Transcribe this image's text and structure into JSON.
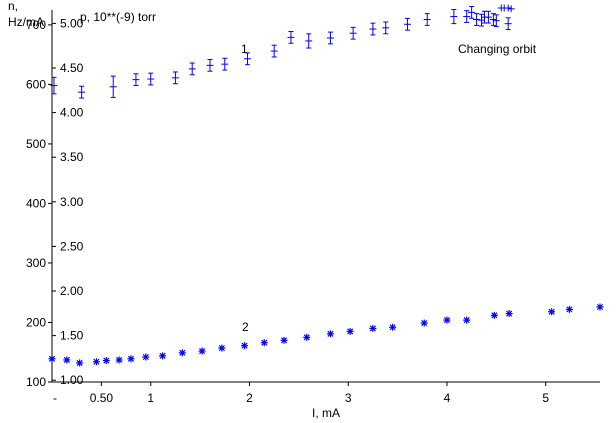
{
  "chart_data": {
    "type": "scatter",
    "left_axis": {
      "label_line1": "n,",
      "label_line2": "Hz/mA",
      "ticks": [
        "100",
        "200",
        "300",
        "400",
        "500",
        "600",
        "700"
      ],
      "ylim": [
        100,
        725
      ]
    },
    "right_axis": {
      "label": "p, 10**(-9) torr",
      "ticks": [
        "1.00",
        "1.50",
        "2.00",
        "2.50",
        "3.00",
        "3.50",
        "4.00",
        "4.50",
        "5.00"
      ],
      "ylim": [
        0.98,
        5.15
      ]
    },
    "x_axis": {
      "label": "I, mA",
      "ticks": [
        "0.50",
        "1",
        "2",
        "3",
        "4",
        "5"
      ],
      "tick_values": [
        0.5,
        1,
        2,
        3,
        4,
        5
      ],
      "xlim": [
        0,
        5.55
      ],
      "minus_sign": "-"
    },
    "annotations": {
      "series1_label": "1",
      "series2_label": "2",
      "changing_orbit": "Changing orbit"
    },
    "series": [
      {
        "marker": "plus-errorbar",
        "axis": "left",
        "points": [
          [
            0.02,
            598,
            8
          ],
          [
            0.3,
            587,
            4
          ],
          [
            0.62,
            596,
            12
          ],
          [
            0.85,
            608,
            4
          ],
          [
            1.0,
            609,
            4
          ],
          [
            1.25,
            611,
            4
          ],
          [
            1.42,
            626,
            4
          ],
          [
            1.6,
            632,
            4
          ],
          [
            1.75,
            634,
            4
          ],
          [
            1.98,
            643,
            4
          ],
          [
            2.25,
            656,
            4
          ],
          [
            2.42,
            679,
            4
          ],
          [
            2.6,
            673,
            6
          ],
          [
            2.82,
            678,
            4
          ],
          [
            3.05,
            686,
            4
          ],
          [
            3.25,
            693,
            4
          ],
          [
            3.38,
            695,
            4
          ],
          [
            3.6,
            701,
            4
          ],
          [
            3.8,
            709,
            4
          ],
          [
            4.07,
            714,
            6
          ],
          [
            4.2,
            714,
            4
          ],
          [
            4.25,
            721,
            4
          ],
          [
            4.3,
            709,
            4
          ],
          [
            4.35,
            708,
            4
          ],
          [
            4.38,
            713,
            4
          ],
          [
            4.42,
            713,
            4
          ],
          [
            4.47,
            709,
            4
          ],
          [
            4.5,
            707,
            4
          ],
          [
            4.62,
            702,
            4
          ]
        ]
      },
      {
        "marker": "asterisk",
        "axis": "left",
        "points": [
          [
            0.0,
            139
          ],
          [
            0.15,
            137
          ],
          [
            0.28,
            132
          ],
          [
            0.45,
            134
          ],
          [
            0.55,
            136
          ],
          [
            0.68,
            137
          ],
          [
            0.8,
            139
          ],
          [
            0.95,
            142
          ],
          [
            1.12,
            144
          ],
          [
            1.32,
            149
          ],
          [
            1.52,
            152
          ],
          [
            1.72,
            157
          ],
          [
            1.95,
            161
          ],
          [
            2.15,
            166
          ],
          [
            2.35,
            170
          ],
          [
            2.58,
            175
          ],
          [
            2.82,
            181
          ],
          [
            3.02,
            185
          ],
          [
            3.25,
            190
          ],
          [
            3.45,
            192
          ],
          [
            3.77,
            199
          ],
          [
            4.0,
            204
          ],
          [
            4.2,
            204
          ],
          [
            4.48,
            212
          ],
          [
            4.63,
            215
          ],
          [
            5.06,
            218
          ],
          [
            5.24,
            222
          ],
          [
            5.55,
            226
          ]
        ]
      }
    ],
    "changing_orbit_points": [
      [
        4.55,
        750
      ],
      [
        4.58,
        740
      ],
      [
        4.62,
        735
      ],
      [
        4.65,
        727
      ]
    ]
  }
}
